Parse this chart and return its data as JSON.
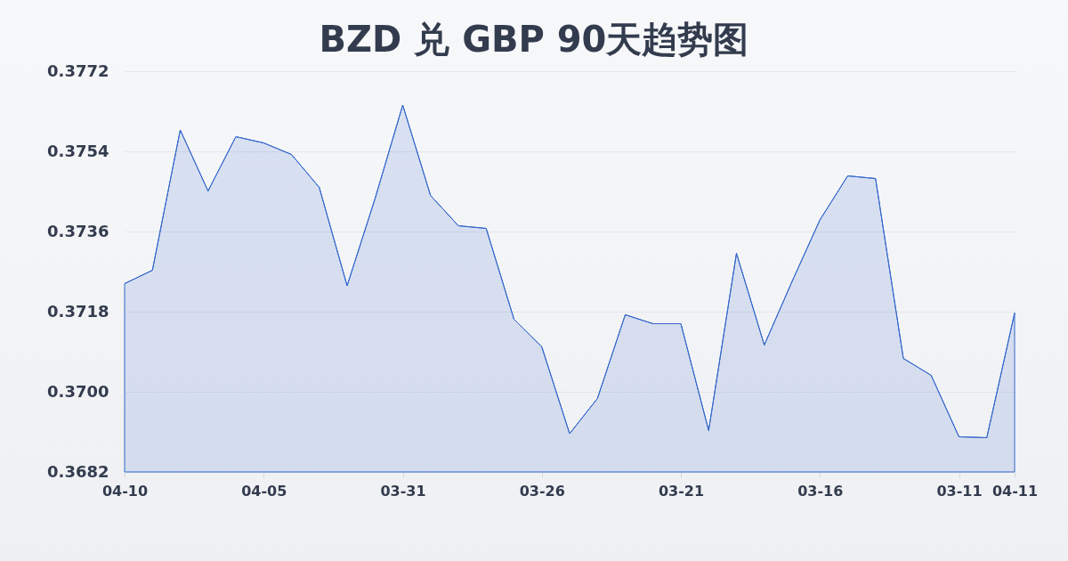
{
  "chart_data": {
    "type": "area",
    "title": "BZD 兑 GBP 90天趋势图",
    "categories": [
      "04-10",
      null,
      null,
      null,
      null,
      "04-05",
      null,
      null,
      null,
      null,
      "03-31",
      null,
      null,
      null,
      null,
      "03-26",
      null,
      null,
      null,
      null,
      "03-21",
      null,
      null,
      null,
      null,
      "03-16",
      null,
      null,
      null,
      null,
      "03-11",
      null,
      "04-11"
    ],
    "values": [
      0.37243,
      0.37273,
      0.37588,
      0.37451,
      0.37573,
      0.37559,
      0.37533,
      0.37459,
      0.37238,
      0.37433,
      0.37644,
      0.37441,
      0.37373,
      0.37367,
      0.37163,
      0.37101,
      0.36906,
      0.36985,
      0.37173,
      0.37153,
      0.37153,
      0.36913,
      0.37311,
      0.37105,
      0.37248,
      0.37386,
      0.37485,
      0.37479,
      0.37075,
      0.37037,
      0.36899,
      0.36897,
      0.37177
    ],
    "color": "#3366cc",
    "ylim": [
      0.3682,
      0.3772
    ],
    "yticks": [
      0.3682,
      {
        "value": 0.37,
        "label": "0.3700"
      },
      0.3718,
      0.3736,
      0.3754,
      0.3772
    ],
    "grid": "y"
  }
}
